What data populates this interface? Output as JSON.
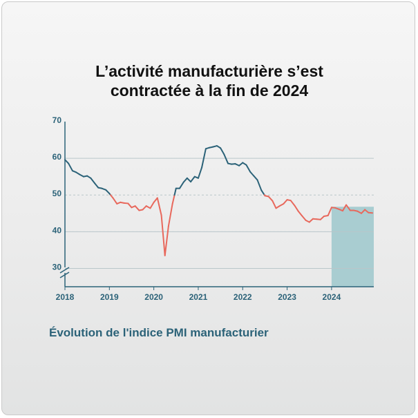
{
  "title_line1": "L’activité manufacturière s’est",
  "title_line2": "contractée à la fin de 2024",
  "subtitle": "Évolution de l'indice PMI manufacturier",
  "colors": {
    "above_50": "#2b6278",
    "below_50": "#e8685c",
    "highlight": "#a9cdd1",
    "grid": "#b9c6ca",
    "axis": "#2b6278",
    "tick_text": "#2b6278"
  },
  "chart_data": {
    "type": "line",
    "title": "L’activité manufacturière s’est contractée à la fin de 2024",
    "xlabel": "",
    "ylabel": "",
    "ylim": [
      25,
      70
    ],
    "axis_break": true,
    "yticks": [
      30,
      40,
      50,
      60,
      70
    ],
    "xlim": [
      2018.0,
      2024.95
    ],
    "xticks": [
      2018,
      2019,
      2020,
      2021,
      2022,
      2023,
      2024
    ],
    "reference_line": 50,
    "highlight_range": [
      2024.0,
      2024.95
    ],
    "color_rule": "segments at or above 50 shown in dark teal, below 50 in coral",
    "series": [
      {
        "name": "Indice PMI manufacturier",
        "x": [
          2018.0,
          2018.08,
          2018.17,
          2018.25,
          2018.33,
          2018.42,
          2018.5,
          2018.58,
          2018.67,
          2018.75,
          2018.83,
          2018.92,
          2019.0,
          2019.08,
          2019.17,
          2019.25,
          2019.33,
          2019.42,
          2019.5,
          2019.58,
          2019.67,
          2019.75,
          2019.83,
          2019.92,
          2020.0,
          2020.08,
          2020.17,
          2020.25,
          2020.33,
          2020.42,
          2020.5,
          2020.58,
          2020.67,
          2020.75,
          2020.83,
          2020.92,
          2021.0,
          2021.08,
          2021.17,
          2021.25,
          2021.33,
          2021.42,
          2021.5,
          2021.58,
          2021.67,
          2021.75,
          2021.83,
          2021.92,
          2022.0,
          2022.08,
          2022.17,
          2022.25,
          2022.33,
          2022.42,
          2022.5,
          2022.58,
          2022.67,
          2022.75,
          2022.83,
          2022.92,
          2023.0,
          2023.08,
          2023.17,
          2023.25,
          2023.33,
          2023.42,
          2023.5,
          2023.58,
          2023.67,
          2023.75,
          2023.83,
          2023.92,
          2024.0,
          2024.08,
          2024.17,
          2024.25,
          2024.33,
          2024.42,
          2024.5,
          2024.58,
          2024.67,
          2024.75,
          2024.83,
          2024.92
        ],
        "values": [
          59.6,
          58.6,
          56.6,
          56.2,
          55.6,
          55.0,
          55.2,
          54.6,
          53.2,
          52.0,
          51.8,
          51.4,
          50.4,
          49.2,
          47.6,
          48.0,
          47.8,
          47.7,
          46.6,
          47.0,
          45.8,
          46.0,
          47.0,
          46.4,
          48.0,
          49.2,
          44.5,
          33.5,
          41.5,
          47.6,
          51.8,
          51.8,
          53.5,
          54.6,
          53.6,
          55.0,
          54.6,
          57.5,
          62.6,
          62.9,
          63.1,
          63.4,
          62.8,
          61.1,
          58.6,
          58.4,
          58.5,
          58.0,
          58.8,
          58.2,
          56.3,
          55.2,
          54.1,
          51.3,
          49.8,
          49.6,
          48.4,
          46.4,
          47.0,
          47.6,
          48.7,
          48.5,
          47.1,
          45.6,
          44.4,
          43.1,
          42.6,
          43.5,
          43.4,
          43.3,
          44.2,
          44.4,
          46.6,
          46.5,
          46.1,
          45.7,
          47.3,
          45.8,
          45.8,
          45.6,
          45.0,
          46.0,
          45.2,
          45.1
        ]
      }
    ]
  }
}
